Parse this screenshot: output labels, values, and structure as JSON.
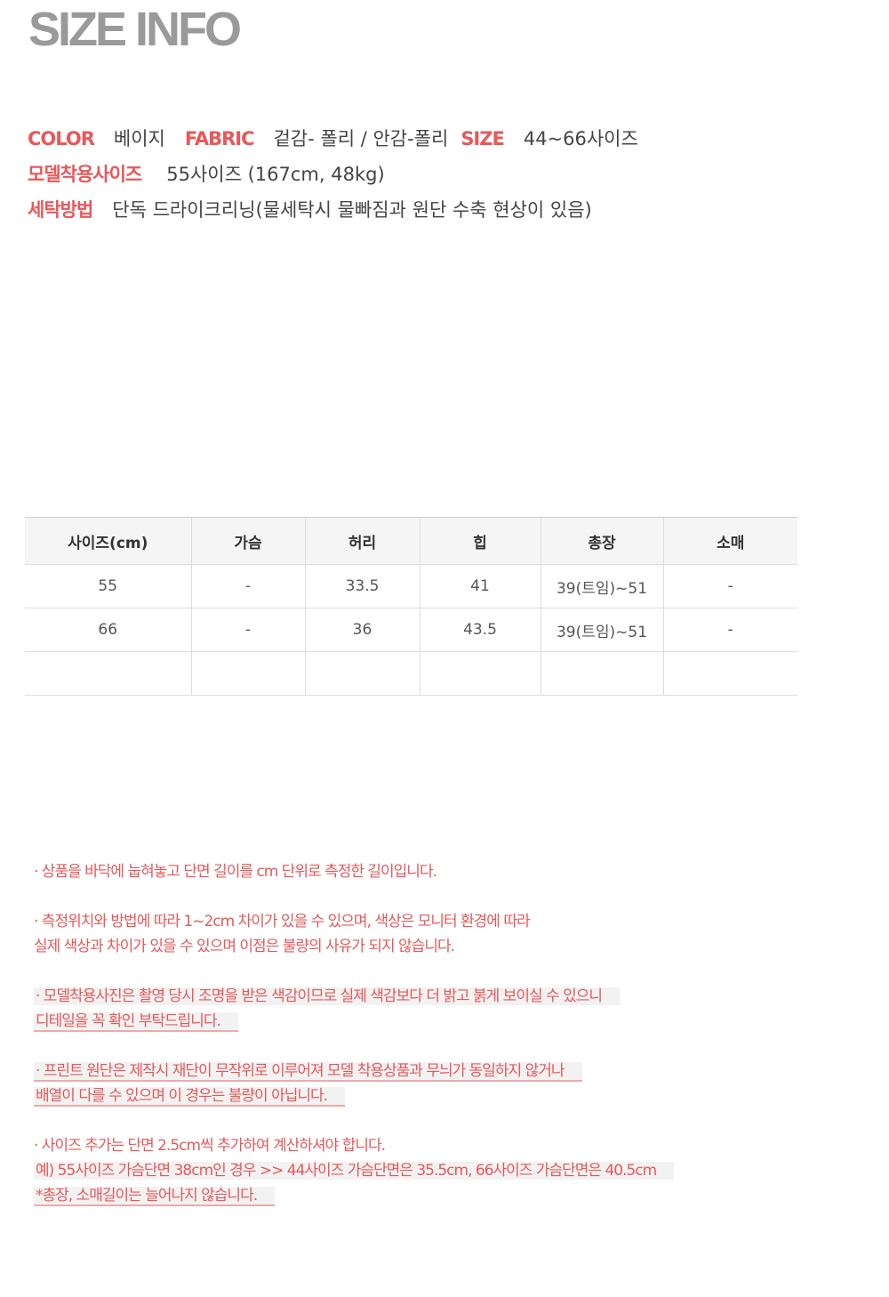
{
  "title": "SIZE INFO",
  "info": {
    "color_label": "COLOR",
    "color_value": "베이지",
    "fabric_label": "FABRIC",
    "fabric_value": "겉감- 폴리 / 안감-폴리",
    "size_label": "SIZE",
    "size_value": "44~66사이즈",
    "model_label": "모델착용사이즈",
    "model_value": "55사이즈 (167cm, 48kg)",
    "wash_label": "세탁방법",
    "wash_value": "단독 드라이크리닝(물세탁시 물빠짐과 원단 수축 현상이 있음)"
  },
  "table": {
    "headers": [
      "사이즈(cm)",
      "가슴",
      "허리",
      "힙",
      "총장",
      "소매"
    ],
    "rows": [
      [
        "55",
        "-",
        "33.5",
        "41",
        "39(트임)~51",
        "-"
      ],
      [
        "66",
        "-",
        "36",
        "43.5",
        "39(트임)~51",
        "-"
      ],
      [
        "",
        "",
        "",
        "",
        "",
        ""
      ]
    ]
  },
  "notes": [
    "· 상품을 바닥에 눕혀놓고 단면 길이를 cm 단위로 측정한 길이입니다.",
    "· 측정위치와 방법에 따라 1~2cm 차이가 있을 수 있으며, 색상은 모니터 환경에 따라",
    " 실제 색상과 차이가 있을 수 있으며 이점은 불량의 사유가 되지 않습니다.",
    "· 모델착용사진은 촬영 당시 조명을 받은 색감이므로 실제 색감보다 더 밝고 붉게 보이실 수 있으니",
    " 디테일을 꼭 확인 부탁드립니다.",
    "· 프린트 원단은 제작시 재단이 무작위로 이루어져 모델 착용상품과 무늬가 동일하지 않거나",
    " 배열이 다를 수 있으며 이 경우는 불량이 아닙니다.",
    "· 사이즈 추가는 단면 2.5cm씩 추가하여 계산하셔야 합니다.",
    " 예) 55사이즈 가슴단면 38cm인 경우  >> 44사이즈 가슴단면은 35.5cm, 66사이즈 가슴단면은 40.5cm",
    " *총장, 소매길이는 늘어나지 않습니다."
  ],
  "colors": {
    "accent": "#e8585a",
    "title": "#9a9a9a"
  }
}
